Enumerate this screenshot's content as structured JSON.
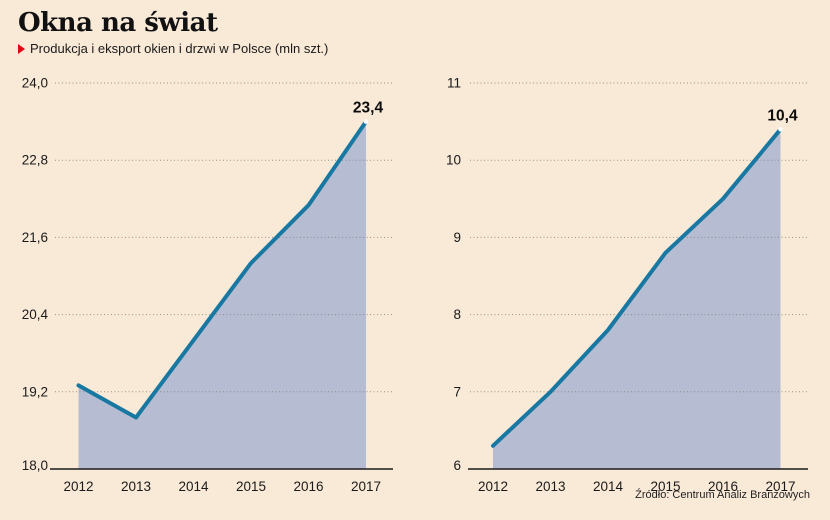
{
  "page": {
    "background": "#f9e9d7"
  },
  "header": {
    "title": "Okna na świat",
    "bullet_icon": "red-triangle",
    "accent_color": "#e30613",
    "subtitle": "Produkcja i eksport okien i drzwi w Polsce (mln szt.)"
  },
  "source": "Źródło: Centrum Analiz Branżowych",
  "chart_data": [
    {
      "type": "area",
      "name": "produkcja",
      "categories": [
        "2012",
        "2013",
        "2014",
        "2015",
        "2016",
        "2017"
      ],
      "values": [
        19.3,
        18.8,
        20.0,
        21.2,
        22.1,
        23.4
      ],
      "ylim": [
        18,
        24
      ],
      "yticks": [
        {
          "value": 24.0,
          "label": "24,0"
        },
        {
          "value": 22.8,
          "label": "22,8"
        },
        {
          "value": 21.6,
          "label": "21,6"
        },
        {
          "value": 20.4,
          "label": "20,4"
        },
        {
          "value": 19.2,
          "label": "19,2"
        },
        {
          "value": 18.0,
          "label": "18,0"
        }
      ],
      "annotation": "23,4",
      "grid": "dotted-horizontal",
      "legend": "none",
      "line_color": "#1878a2",
      "fill_color": "#b6bdd3"
    },
    {
      "type": "area",
      "name": "eksport",
      "categories": [
        "2012",
        "2013",
        "2014",
        "2015",
        "2016",
        "2017"
      ],
      "values": [
        6.3,
        7.0,
        7.8,
        8.8,
        9.5,
        10.4
      ],
      "ylim": [
        6,
        11
      ],
      "yticks": [
        {
          "value": 11,
          "label": "11"
        },
        {
          "value": 10,
          "label": "10"
        },
        {
          "value": 9,
          "label": "9"
        },
        {
          "value": 8,
          "label": "8"
        },
        {
          "value": 7,
          "label": "7"
        },
        {
          "value": 6,
          "label": "6"
        }
      ],
      "annotation": "10,4",
      "grid": "dotted-horizontal",
      "legend": "none",
      "line_color": "#1878a2",
      "fill_color": "#b6bdd3"
    }
  ]
}
